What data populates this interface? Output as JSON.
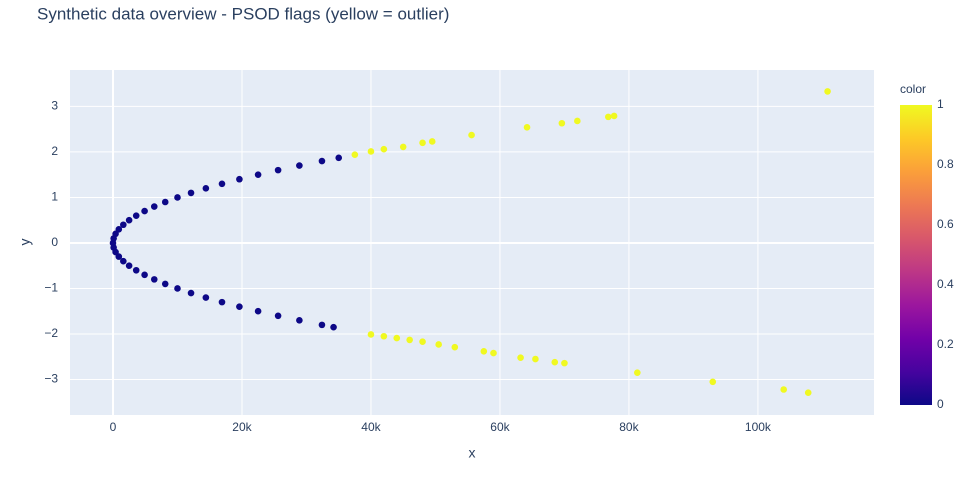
{
  "chart_data": {
    "type": "scatter",
    "title": "Synthetic data overview - PSOD flags (yellow = outlier)",
    "x_label": "x",
    "y_label": "y",
    "x": [
      0,
      100,
      400,
      900,
      1600,
      2500,
      3600,
      4900,
      6400,
      8100,
      10000,
      12100,
      14400,
      16900,
      19600,
      22500,
      25600,
      28900,
      32400,
      35000,
      100,
      400,
      900,
      1600,
      2500,
      3600,
      4900,
      6400,
      8100,
      10000,
      12100,
      14400,
      16900,
      19600,
      22500,
      25600,
      28900,
      32400,
      34200,
      37500,
      40000,
      42000,
      45000,
      48000,
      49500,
      55600,
      64200,
      69600,
      72000,
      76800,
      77700,
      110800,
      40000,
      42000,
      44000,
      46000,
      48000,
      50500,
      53000,
      57500,
      59000,
      63200,
      65500,
      68500,
      70000,
      81300,
      93000,
      104000,
      107800
    ],
    "y": [
      0,
      0.1,
      0.2,
      0.3,
      0.4,
      0.5,
      0.6,
      0.7,
      0.8,
      0.9,
      1.0,
      1.1,
      1.2,
      1.3,
      1.4,
      1.5,
      1.6,
      1.7,
      1.8,
      1.87,
      -0.1,
      -0.2,
      -0.3,
      -0.4,
      -0.5,
      -0.6,
      -0.7,
      -0.8,
      -0.9,
      -1.0,
      -1.1,
      -1.2,
      -1.3,
      -1.4,
      -1.5,
      -1.6,
      -1.7,
      -1.8,
      -1.85,
      1.94,
      2.01,
      2.06,
      2.11,
      2.2,
      2.23,
      2.37,
      2.54,
      2.63,
      2.68,
      2.77,
      2.79,
      3.33,
      -2.01,
      -2.05,
      -2.09,
      -2.13,
      -2.17,
      -2.23,
      -2.29,
      -2.38,
      -2.42,
      -2.52,
      -2.55,
      -2.62,
      -2.64,
      -2.85,
      -3.05,
      -3.22,
      -3.29
    ],
    "color": [
      0,
      0,
      0,
      0,
      0,
      0,
      0,
      0,
      0,
      0,
      0,
      0,
      0,
      0,
      0,
      0,
      0,
      0,
      0,
      0,
      0,
      0,
      0,
      0,
      0,
      0,
      0,
      0,
      0,
      0,
      0,
      0,
      0,
      0,
      0,
      0,
      0,
      0,
      0,
      1,
      1,
      1,
      1,
      1,
      1,
      1,
      1,
      1,
      1,
      1,
      1,
      1,
      1,
      1,
      1,
      1,
      1,
      1,
      1,
      1,
      1,
      1,
      1,
      1,
      1,
      1,
      1,
      1,
      1
    ],
    "colorscale": [
      "#0d0887",
      "#46039f",
      "#7201a8",
      "#9c179e",
      "#bd3786",
      "#d8576b",
      "#ed7953",
      "#fb9f3a",
      "#fdca26",
      "#f0f921"
    ],
    "colorbar_title": "color",
    "clim": [
      0,
      1
    ],
    "colorbar_ticks": [
      0,
      0.2,
      0.4,
      0.6,
      0.8,
      1
    ],
    "xlim": [
      -6667,
      118000
    ],
    "ylim": [
      -3.78,
      3.8
    ],
    "xticks": [
      0,
      {
        "value": 20000,
        "label": "20k"
      },
      {
        "value": 40000,
        "label": "40k"
      },
      {
        "value": 60000,
        "label": "60k"
      },
      {
        "value": 80000,
        "label": "80k"
      },
      {
        "value": 100000,
        "label": "100k"
      }
    ],
    "yticks": [
      {
        "value": -3,
        "label": "−3"
      },
      {
        "value": -2,
        "label": "−2"
      },
      {
        "value": -1,
        "label": "−1"
      },
      0,
      1,
      2,
      3
    ],
    "grid": true
  }
}
